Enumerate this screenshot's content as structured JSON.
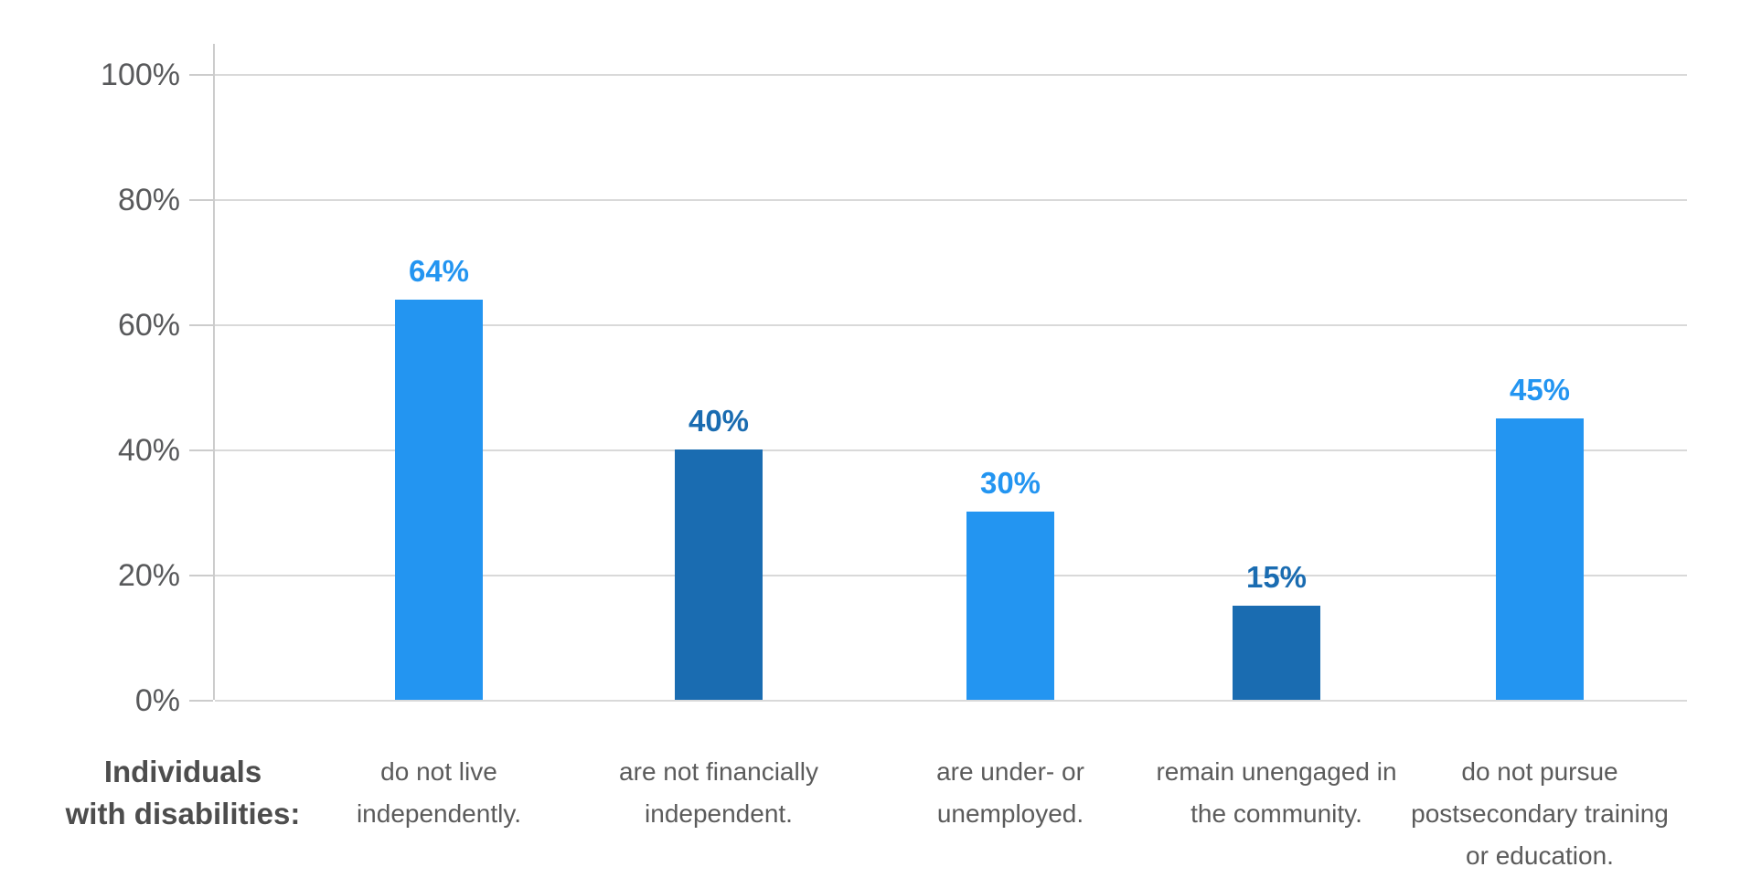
{
  "chart_data": {
    "type": "bar",
    "title": "",
    "row_label": "Individuals\nwith disabilities:",
    "categories": [
      "do not live independently.",
      "are not financially independent.",
      "are under- or unemployed.",
      "remain unengaged in the community.",
      "do not pursue postsecondary training or education."
    ],
    "values": [
      64,
      40,
      30,
      15,
      45
    ],
    "value_labels": [
      "64%",
      "40%",
      "30%",
      "15%",
      "45%"
    ],
    "bar_colors": [
      "#2395F1",
      "#1A6CB1",
      "#2395F1",
      "#1A6CB1",
      "#2395F1"
    ],
    "xlabel": "",
    "ylabel": "",
    "ylim": [
      0,
      100
    ],
    "yticks": [
      100,
      80,
      60,
      40,
      20,
      0
    ],
    "ytick_labels": [
      "100%",
      "80%",
      "60%",
      "40%",
      "20%",
      "0%"
    ],
    "grid": true,
    "legend": "none"
  },
  "colors": {
    "light_blue": "#2395F1",
    "dark_blue": "#1A6CB1",
    "gridline": "#D9D9D9",
    "axis_line": "#CCCCCC",
    "ytick_text": "#58595B",
    "category_text": "#5B5B5B",
    "row_label_text": "#4D4D4D"
  }
}
